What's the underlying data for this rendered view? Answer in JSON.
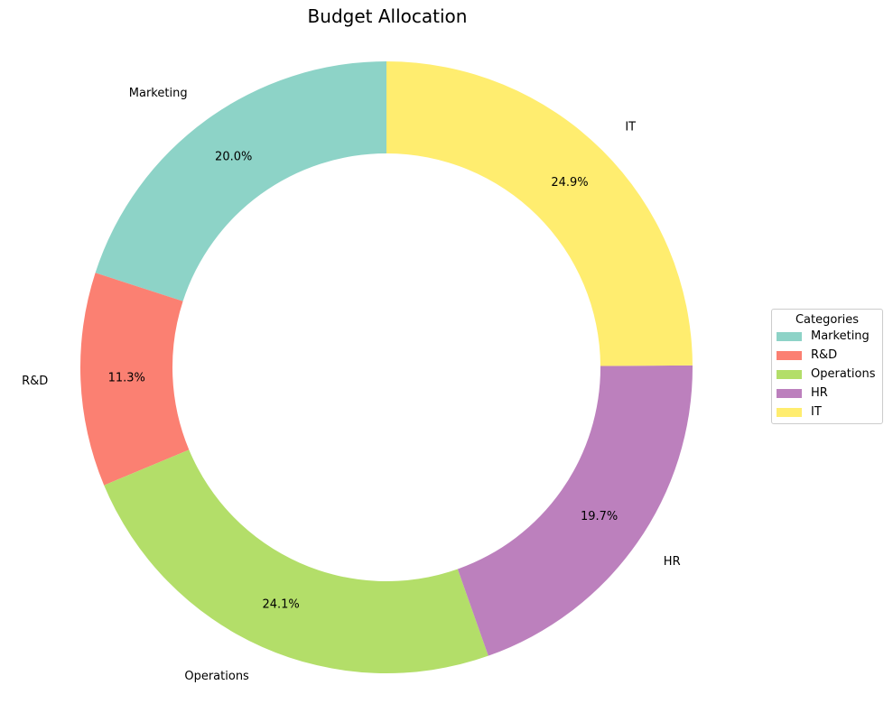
{
  "chart_data": {
    "type": "pie",
    "title": "Budget Allocation",
    "donut": true,
    "categories": [
      "Marketing",
      "R&D",
      "Operations",
      "HR",
      "IT"
    ],
    "values": [
      20.0,
      11.3,
      24.1,
      19.7,
      24.9
    ],
    "percent_labels": [
      "20.0%",
      "11.3%",
      "24.1%",
      "19.7%",
      "24.9%"
    ],
    "colors": [
      "#8dd3c7",
      "#fb8072",
      "#b3de69",
      "#bc80bd",
      "#ffed6f"
    ],
    "start_angle_deg": 90,
    "direction": "counterclockwise",
    "legend": {
      "title": "Categories",
      "placement": "right"
    }
  }
}
